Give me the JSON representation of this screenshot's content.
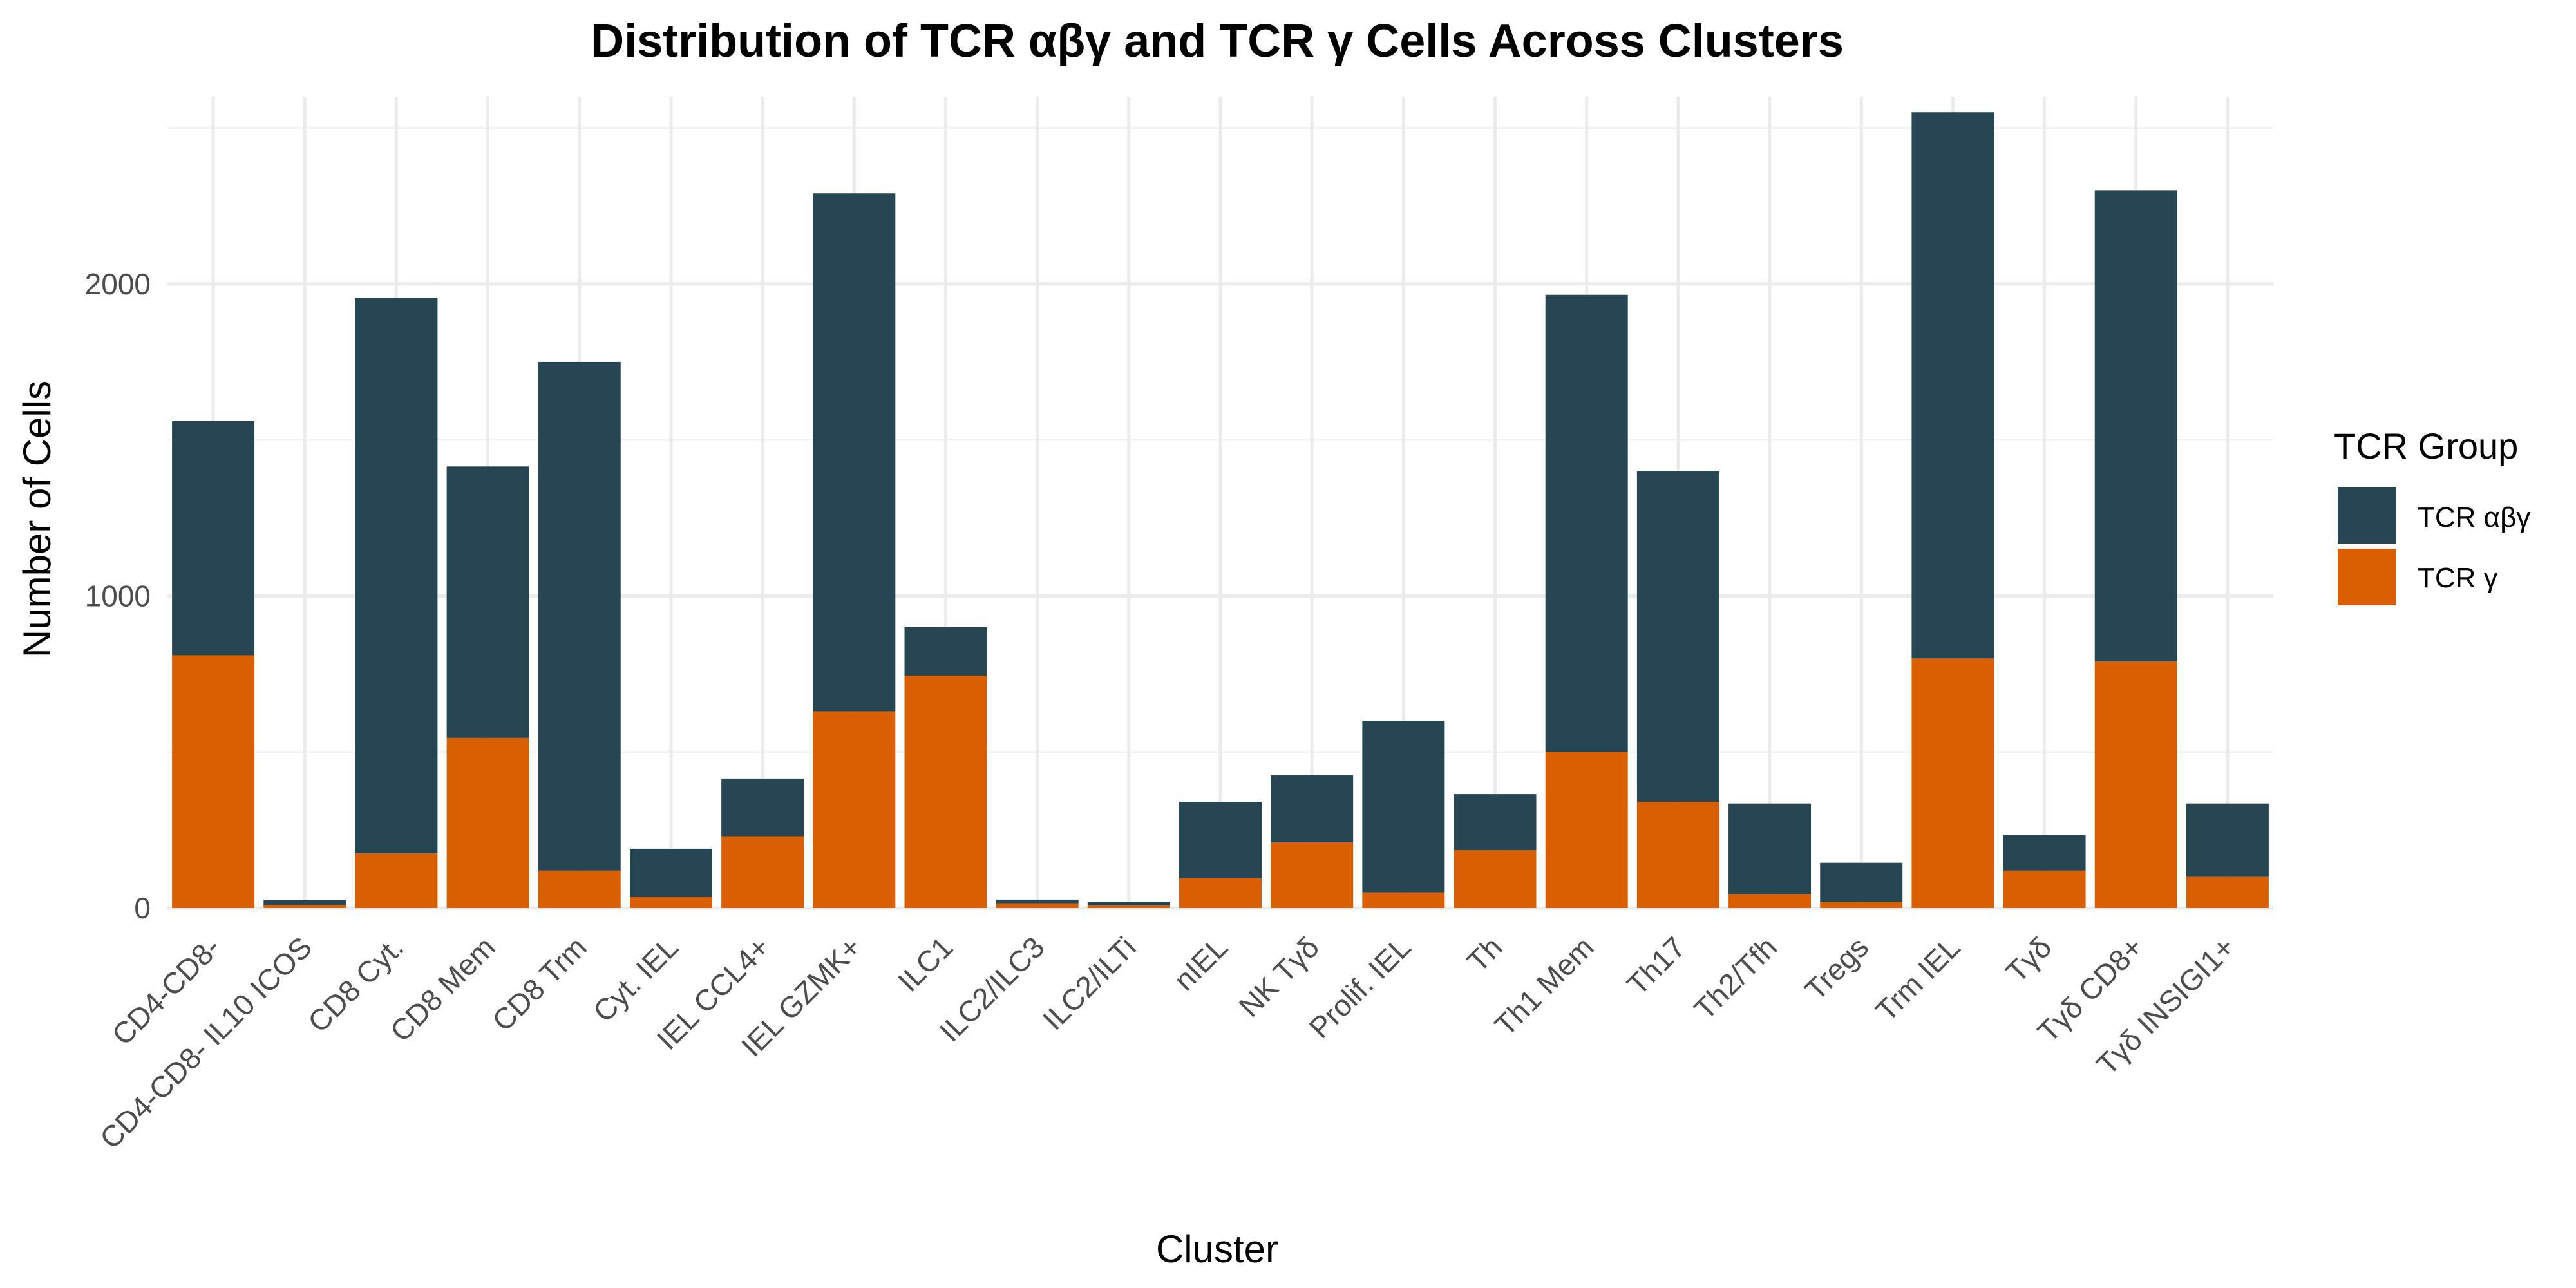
{
  "chart_data": {
    "type": "bar",
    "stacked": true,
    "title": "Distribution of TCR αβγ and TCR γ Cells Across Clusters",
    "xlabel": "Cluster",
    "ylabel": "Number of Cells",
    "ylim": [
      0,
      2600
    ],
    "yticks": [
      0,
      1000,
      2000
    ],
    "grid": true,
    "legend": {
      "title": "TCR Group",
      "position": "right"
    },
    "categories": [
      "CD4-CD8-",
      "CD4-CD8- IL10 ICOS",
      "CD8 Cyt.",
      "CD8 Mem",
      "CD8 Trm",
      "Cyt. IEL",
      "IEL CCL4+",
      "IEL GZMK+",
      "ILC1",
      "ILC2/ILC3",
      "ILC2/ILTi",
      "nIEL",
      "NK Tγδ",
      "Prolif. IEL",
      "Th",
      "Th1 Mem",
      "Th17",
      "Th2/Tfh",
      "Tregs",
      "Trm IEL",
      "Tγδ",
      "Tγδ CD8+",
      "Tγδ INSIGI1+"
    ],
    "series": [
      {
        "name": "TCR γ",
        "color": "#d95f02",
        "values": [
          810,
          10,
          175,
          545,
          120,
          35,
          230,
          630,
          745,
          15,
          8,
          95,
          210,
          50,
          185,
          500,
          340,
          45,
          20,
          800,
          120,
          790,
          100
        ]
      },
      {
        "name": "TCR αβγ",
        "color": "#264653",
        "values": [
          750,
          15,
          1780,
          870,
          1630,
          155,
          185,
          1660,
          155,
          12,
          12,
          245,
          215,
          550,
          180,
          1465,
          1060,
          290,
          125,
          1750,
          115,
          1510,
          235
        ]
      }
    ]
  }
}
